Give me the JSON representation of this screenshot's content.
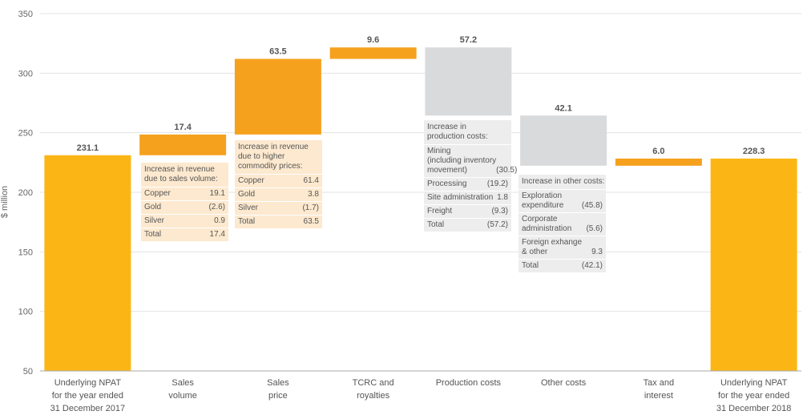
{
  "chart_data": {
    "type": "waterfall",
    "ylabel": "$ million",
    "ylim": [
      50,
      350
    ],
    "yticks": [
      50,
      100,
      150,
      200,
      250,
      300,
      350
    ],
    "grid": true,
    "categories": [
      {
        "lines": [
          "Underlying NPAT",
          "for the year ended",
          "31 December 2017"
        ]
      },
      {
        "lines": [
          "Sales",
          "volume"
        ]
      },
      {
        "lines": [
          "Sales",
          "price"
        ]
      },
      {
        "lines": [
          "TCRC and",
          "royalties"
        ]
      },
      {
        "lines": [
          "Production costs"
        ]
      },
      {
        "lines": [
          "Other costs"
        ]
      },
      {
        "lines": [
          "Tax and",
          "interest"
        ]
      },
      {
        "lines": [
          "Underlying NPAT",
          "for the year ended",
          "31 December 2018"
        ]
      }
    ],
    "bars": [
      {
        "kind": "total",
        "base": 0,
        "value": 231.1,
        "label": "231.1"
      },
      {
        "kind": "increase",
        "base": 231.1,
        "value": 17.4,
        "label": "17.4"
      },
      {
        "kind": "increase",
        "base": 248.5,
        "value": 63.5,
        "label": "63.5"
      },
      {
        "kind": "increase",
        "base": 312.0,
        "value": 9.6,
        "label": "9.6"
      },
      {
        "kind": "decrease",
        "base": 321.6,
        "value": 57.2,
        "label": "57.2"
      },
      {
        "kind": "decrease",
        "base": 264.4,
        "value": 42.1,
        "label": "42.1"
      },
      {
        "kind": "increase",
        "base": 222.3,
        "value": 6.0,
        "label": "6.0"
      },
      {
        "kind": "total",
        "base": 0,
        "value": 228.3,
        "label": "228.3"
      }
    ],
    "colors": {
      "total": "#fbb615",
      "increase": "#f5a11e",
      "decrease": "#d9dadb",
      "grid": "#e3e3e3",
      "axis": "#aaaaaa"
    }
  },
  "notes": {
    "sales_volume": {
      "header": [
        "Increase in revenue",
        "due to sales volume:"
      ],
      "rows": [
        {
          "name": [
            "Copper"
          ],
          "value": "19.1"
        },
        {
          "name": [
            "Gold"
          ],
          "value": "(2.6)"
        },
        {
          "name": [
            "Silver"
          ],
          "value": "0.9"
        },
        {
          "name": [
            "Total"
          ],
          "value": "17.4"
        }
      ]
    },
    "sales_price": {
      "header": [
        "Increase in revenue",
        "due to higher",
        "commodity prices:"
      ],
      "rows": [
        {
          "name": [
            "Copper"
          ],
          "value": "61.4"
        },
        {
          "name": [
            "Gold"
          ],
          "value": "3.8"
        },
        {
          "name": [
            "Silver"
          ],
          "value": "(1.7)"
        },
        {
          "name": [
            "Total"
          ],
          "value": "63.5"
        }
      ]
    },
    "production_costs": {
      "header": [
        "Increase in",
        "production costs:"
      ],
      "rows": [
        {
          "name": [
            "Mining",
            "(including inventory",
            "movement)"
          ],
          "value": "(30.5)"
        },
        {
          "name": [
            "Processing"
          ],
          "value": "(19.2)"
        },
        {
          "name": [
            "Site administration"
          ],
          "value": "1.8"
        },
        {
          "name": [
            "Freight"
          ],
          "value": "(9.3)"
        },
        {
          "name": [
            "Total"
          ],
          "value": "(57.2)"
        }
      ]
    },
    "other_costs": {
      "header": [
        "Increase in other costs:"
      ],
      "rows": [
        {
          "name": [
            "Exploration",
            "expenditure"
          ],
          "value": "(45.8)"
        },
        {
          "name": [
            "Corporate",
            "administration"
          ],
          "value": "(5.6)"
        },
        {
          "name": [
            "Foreign exhange",
            "& other"
          ],
          "value": "9.3"
        },
        {
          "name": [
            "Total"
          ],
          "value": "(42.1)"
        }
      ]
    }
  }
}
